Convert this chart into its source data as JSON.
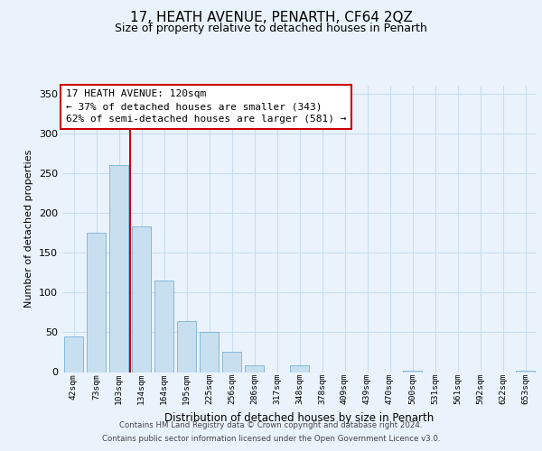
{
  "title": "17, HEATH AVENUE, PENARTH, CF64 2QZ",
  "subtitle": "Size of property relative to detached houses in Penarth",
  "xlabel": "Distribution of detached houses by size in Penarth",
  "ylabel": "Number of detached properties",
  "bar_labels": [
    "42sqm",
    "73sqm",
    "103sqm",
    "134sqm",
    "164sqm",
    "195sqm",
    "225sqm",
    "256sqm",
    "286sqm",
    "317sqm",
    "348sqm",
    "378sqm",
    "409sqm",
    "439sqm",
    "470sqm",
    "500sqm",
    "531sqm",
    "561sqm",
    "592sqm",
    "622sqm",
    "653sqm"
  ],
  "bar_values": [
    45,
    175,
    260,
    183,
    115,
    64,
    51,
    25,
    8,
    0,
    9,
    0,
    0,
    0,
    0,
    2,
    0,
    0,
    0,
    0,
    2
  ],
  "bar_color": "#c8dff0",
  "bar_edge_color": "#7ab0d4",
  "vline_x_index": 2,
  "vline_color": "#cc0000",
  "annotation_title": "17 HEATH AVENUE: 120sqm",
  "annotation_line1": "← 37% of detached houses are smaller (343)",
  "annotation_line2": "62% of semi-detached houses are larger (581) →",
  "annotation_box_color": "#ffffff",
  "annotation_box_edge": "#cc0000",
  "ylim": [
    0,
    360
  ],
  "yticks": [
    0,
    50,
    100,
    150,
    200,
    250,
    300,
    350
  ],
  "grid_color": "#c8ddf0",
  "footer_line1": "Contains HM Land Registry data © Crown copyright and database right 2024.",
  "footer_line2": "Contains public sector information licensed under the Open Government Licence v3.0.",
  "bg_color": "#eaf3fb"
}
